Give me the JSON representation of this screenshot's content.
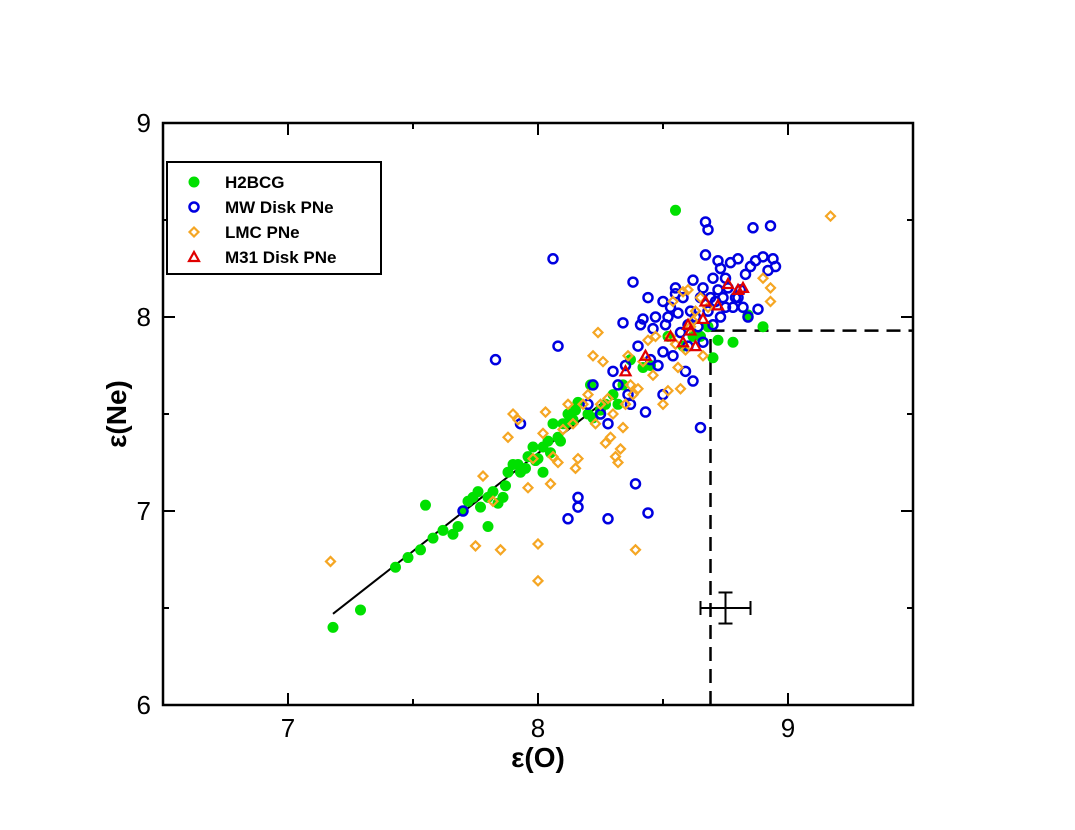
{
  "chart_data": {
    "type": "scatter",
    "xlabel": "ε(O)",
    "ylabel": "ε(Ne)",
    "xlim": [
      6.5,
      9.5
    ],
    "ylim": [
      6,
      9
    ],
    "xticks": [
      7,
      8,
      9
    ],
    "yticks": [
      6,
      7,
      8,
      9
    ],
    "legend_position": "top-left",
    "grid": false,
    "series": [
      {
        "name": "H2BCG",
        "marker": "filled-circle",
        "color": "#00e000",
        "points": [
          [
            7.18,
            6.4
          ],
          [
            7.29,
            6.49
          ],
          [
            7.43,
            6.71
          ],
          [
            7.48,
            6.76
          ],
          [
            7.53,
            6.8
          ],
          [
            7.55,
            7.03
          ],
          [
            7.58,
            6.86
          ],
          [
            7.62,
            6.9
          ],
          [
            7.66,
            6.88
          ],
          [
            7.68,
            6.92
          ],
          [
            7.7,
            7.0
          ],
          [
            7.72,
            7.05
          ],
          [
            7.74,
            7.07
          ],
          [
            7.76,
            7.1
          ],
          [
            7.77,
            7.02
          ],
          [
            7.8,
            6.92
          ],
          [
            7.8,
            7.07
          ],
          [
            7.82,
            7.1
          ],
          [
            7.84,
            7.04
          ],
          [
            7.86,
            7.07
          ],
          [
            7.87,
            7.13
          ],
          [
            7.88,
            7.2
          ],
          [
            7.9,
            7.24
          ],
          [
            7.92,
            7.24
          ],
          [
            7.93,
            7.2
          ],
          [
            7.95,
            7.22
          ],
          [
            7.96,
            7.28
          ],
          [
            7.98,
            7.33
          ],
          [
            7.99,
            7.26
          ],
          [
            8.0,
            7.27
          ],
          [
            8.02,
            7.33
          ],
          [
            8.02,
            7.2
          ],
          [
            8.04,
            7.36
          ],
          [
            8.05,
            7.3
          ],
          [
            8.06,
            7.45
          ],
          [
            8.08,
            7.38
          ],
          [
            8.09,
            7.36
          ],
          [
            8.1,
            7.45
          ],
          [
            8.11,
            7.45
          ],
          [
            8.12,
            7.5
          ],
          [
            8.13,
            7.5
          ],
          [
            8.14,
            7.47
          ],
          [
            8.15,
            7.52
          ],
          [
            8.16,
            7.56
          ],
          [
            8.2,
            7.5
          ],
          [
            8.21,
            7.65
          ],
          [
            8.22,
            7.48
          ],
          [
            8.25,
            7.52
          ],
          [
            8.27,
            7.55
          ],
          [
            8.3,
            7.6
          ],
          [
            8.32,
            7.55
          ],
          [
            8.34,
            7.65
          ],
          [
            8.37,
            7.78
          ],
          [
            8.42,
            7.74
          ],
          [
            8.45,
            7.75
          ],
          [
            8.52,
            7.9
          ],
          [
            8.55,
            8.55
          ],
          [
            8.58,
            7.85
          ],
          [
            8.62,
            7.9
          ],
          [
            8.65,
            7.9
          ],
          [
            8.68,
            7.95
          ],
          [
            8.7,
            7.79
          ],
          [
            8.72,
            7.88
          ],
          [
            8.78,
            7.87
          ],
          [
            8.84,
            8.01
          ],
          [
            8.9,
            7.95
          ]
        ]
      },
      {
        "name": "MW Disk PNe",
        "marker": "open-circle",
        "color": "#0000e0",
        "points": [
          [
            7.7,
            7.0
          ],
          [
            7.83,
            7.78
          ],
          [
            7.93,
            7.45
          ],
          [
            8.06,
            8.3
          ],
          [
            8.08,
            7.85
          ],
          [
            8.12,
            6.96
          ],
          [
            8.16,
            7.07
          ],
          [
            8.16,
            7.02
          ],
          [
            8.2,
            7.55
          ],
          [
            8.22,
            7.65
          ],
          [
            8.25,
            7.5
          ],
          [
            8.28,
            7.45
          ],
          [
            8.28,
            6.96
          ],
          [
            8.3,
            7.72
          ],
          [
            8.32,
            7.65
          ],
          [
            8.34,
            7.97
          ],
          [
            8.35,
            7.75
          ],
          [
            8.36,
            7.6
          ],
          [
            8.37,
            7.55
          ],
          [
            8.38,
            8.18
          ],
          [
            8.39,
            7.14
          ],
          [
            8.4,
            7.85
          ],
          [
            8.41,
            7.96
          ],
          [
            8.42,
            7.99
          ],
          [
            8.43,
            7.51
          ],
          [
            8.44,
            8.1
          ],
          [
            8.44,
            6.99
          ],
          [
            8.45,
            7.78
          ],
          [
            8.46,
            7.94
          ],
          [
            8.47,
            8.0
          ],
          [
            8.48,
            7.75
          ],
          [
            8.5,
            7.6
          ],
          [
            8.5,
            7.82
          ],
          [
            8.5,
            8.08
          ],
          [
            8.51,
            7.96
          ],
          [
            8.52,
            8.0
          ],
          [
            8.53,
            8.05
          ],
          [
            8.54,
            7.8
          ],
          [
            8.55,
            8.15
          ],
          [
            8.55,
            8.12
          ],
          [
            8.56,
            8.02
          ],
          [
            8.57,
            7.92
          ],
          [
            8.58,
            8.1
          ],
          [
            8.59,
            7.72
          ],
          [
            8.6,
            7.96
          ],
          [
            8.6,
            7.85
          ],
          [
            8.61,
            8.03
          ],
          [
            8.62,
            7.67
          ],
          [
            8.62,
            8.19
          ],
          [
            8.63,
            8.0
          ],
          [
            8.64,
            7.95
          ],
          [
            8.65,
            7.43
          ],
          [
            8.65,
            8.1
          ],
          [
            8.66,
            8.15
          ],
          [
            8.66,
            7.87
          ],
          [
            8.67,
            8.32
          ],
          [
            8.67,
            8.49
          ],
          [
            8.68,
            8.45
          ],
          [
            8.68,
            8.03
          ],
          [
            8.69,
            8.1
          ],
          [
            8.7,
            8.2
          ],
          [
            8.7,
            7.96
          ],
          [
            8.71,
            8.08
          ],
          [
            8.72,
            8.29
          ],
          [
            8.72,
            8.14
          ],
          [
            8.73,
            8.0
          ],
          [
            8.73,
            8.25
          ],
          [
            8.74,
            8.1
          ],
          [
            8.75,
            8.05
          ],
          [
            8.75,
            8.2
          ],
          [
            8.76,
            8.15
          ],
          [
            8.77,
            8.28
          ],
          [
            8.78,
            8.05
          ],
          [
            8.79,
            8.1
          ],
          [
            8.8,
            8.3
          ],
          [
            8.8,
            8.1
          ],
          [
            8.81,
            8.14
          ],
          [
            8.82,
            8.05
          ],
          [
            8.83,
            8.22
          ],
          [
            8.84,
            8.0
          ],
          [
            8.85,
            8.26
          ],
          [
            8.86,
            8.46
          ],
          [
            8.87,
            8.29
          ],
          [
            8.88,
            8.04
          ],
          [
            8.9,
            8.31
          ],
          [
            8.92,
            8.24
          ],
          [
            8.93,
            8.47
          ],
          [
            8.94,
            8.3
          ],
          [
            8.95,
            8.26
          ]
        ]
      },
      {
        "name": "LMC PNe",
        "marker": "open-diamond",
        "color": "#f5a623",
        "points": [
          [
            7.17,
            6.74
          ],
          [
            7.75,
            6.82
          ],
          [
            7.78,
            7.18
          ],
          [
            7.82,
            7.05
          ],
          [
            7.85,
            6.8
          ],
          [
            7.88,
            7.38
          ],
          [
            7.9,
            7.5
          ],
          [
            7.92,
            7.47
          ],
          [
            7.96,
            7.12
          ],
          [
            7.98,
            7.27
          ],
          [
            8.0,
            6.64
          ],
          [
            8.0,
            6.83
          ],
          [
            8.02,
            7.4
          ],
          [
            8.03,
            7.51
          ],
          [
            8.05,
            7.14
          ],
          [
            8.06,
            7.28
          ],
          [
            8.08,
            7.25
          ],
          [
            8.1,
            7.42
          ],
          [
            8.12,
            7.55
          ],
          [
            8.14,
            7.45
          ],
          [
            8.15,
            7.22
          ],
          [
            8.16,
            7.27
          ],
          [
            8.18,
            7.55
          ],
          [
            8.2,
            7.6
          ],
          [
            8.22,
            7.8
          ],
          [
            8.23,
            7.45
          ],
          [
            8.24,
            7.92
          ],
          [
            8.25,
            7.55
          ],
          [
            8.26,
            7.77
          ],
          [
            8.27,
            7.35
          ],
          [
            8.28,
            7.58
          ],
          [
            8.29,
            7.38
          ],
          [
            8.3,
            7.5
          ],
          [
            8.31,
            7.28
          ],
          [
            8.32,
            7.25
          ],
          [
            8.33,
            7.32
          ],
          [
            8.34,
            7.43
          ],
          [
            8.35,
            7.55
          ],
          [
            8.36,
            7.8
          ],
          [
            8.37,
            7.65
          ],
          [
            8.38,
            7.6
          ],
          [
            8.39,
            6.8
          ],
          [
            8.4,
            7.63
          ],
          [
            8.42,
            7.77
          ],
          [
            8.44,
            7.88
          ],
          [
            8.46,
            7.7
          ],
          [
            8.47,
            7.9
          ],
          [
            8.5,
            7.55
          ],
          [
            8.52,
            7.62
          ],
          [
            8.53,
            7.9
          ],
          [
            8.54,
            8.08
          ],
          [
            8.55,
            7.86
          ],
          [
            8.56,
            7.74
          ],
          [
            8.57,
            7.63
          ],
          [
            8.58,
            8.13
          ],
          [
            8.59,
            7.83
          ],
          [
            8.6,
            8.14
          ],
          [
            8.61,
            7.95
          ],
          [
            8.62,
            7.98
          ],
          [
            8.63,
            8.03
          ],
          [
            8.65,
            8.1
          ],
          [
            8.66,
            7.8
          ],
          [
            8.68,
            8.05
          ],
          [
            8.9,
            8.2
          ],
          [
            8.93,
            8.15
          ],
          [
            8.93,
            8.08
          ],
          [
            9.17,
            8.52
          ]
        ]
      },
      {
        "name": "M31 Disk PNe",
        "marker": "open-triangle",
        "color": "#e00000",
        "points": [
          [
            8.35,
            7.72
          ],
          [
            8.43,
            7.8
          ],
          [
            8.53,
            7.9
          ],
          [
            8.58,
            7.87
          ],
          [
            8.6,
            7.96
          ],
          [
            8.61,
            7.93
          ],
          [
            8.63,
            7.85
          ],
          [
            8.66,
            7.99
          ],
          [
            8.67,
            8.08
          ],
          [
            8.72,
            8.06
          ],
          [
            8.76,
            8.17
          ],
          [
            8.8,
            8.14
          ],
          [
            8.82,
            8.15
          ]
        ]
      }
    ],
    "fit_line": [
      [
        7.18,
        6.47
      ],
      [
        8.27,
        7.57
      ]
    ],
    "dashed_lines": {
      "vertical_x": 8.69,
      "vertical_y_range": [
        6,
        7.93
      ],
      "horizontal_y": 7.93,
      "horizontal_x_range": [
        8.69,
        9.5
      ]
    },
    "error_bar": {
      "x": 8.75,
      "y": 6.5,
      "xerr": 0.1,
      "yerr": 0.08
    }
  }
}
